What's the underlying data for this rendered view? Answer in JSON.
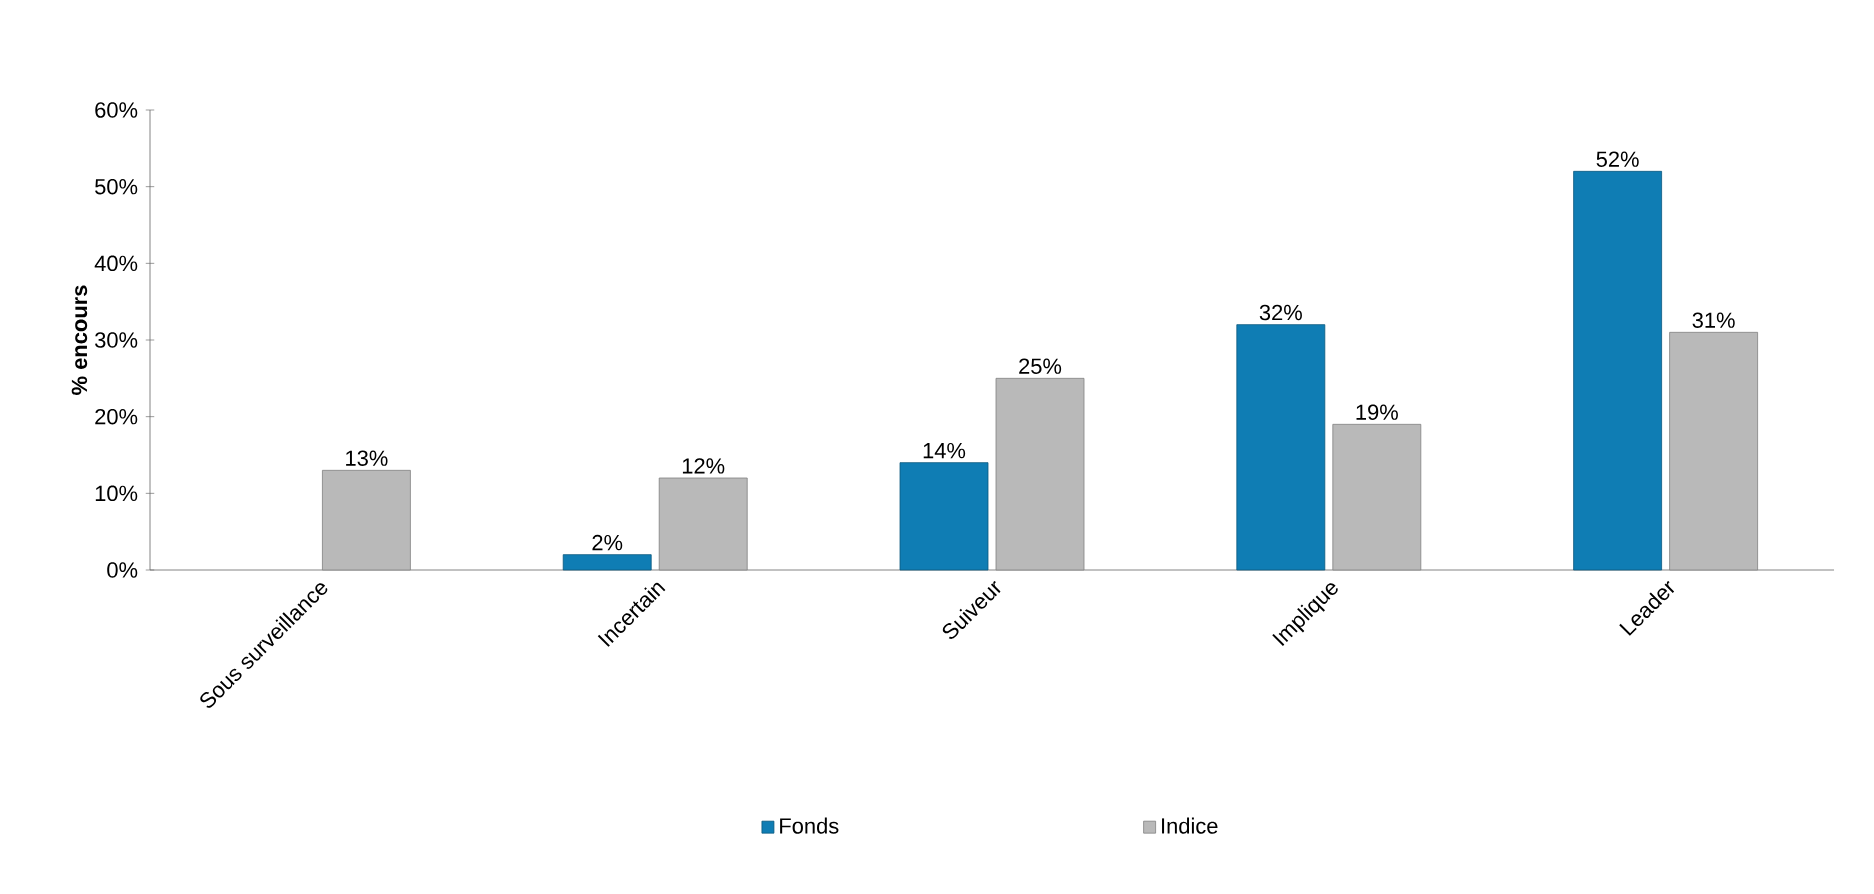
{
  "chart_data": {
    "type": "bar",
    "ylabel": "% encours",
    "categories": [
      "Sous surveillance",
      "Incertain",
      "Suiveur",
      "Implique",
      "Leader"
    ],
    "series": [
      {
        "name": "Fonds",
        "color": "#0f7db4",
        "values": [
          null,
          2,
          14,
          32,
          52
        ],
        "value_labels": [
          null,
          "2%",
          "14%",
          "32%",
          "52%"
        ]
      },
      {
        "name": "Indice",
        "color": "#b9b9b9",
        "values": [
          13,
          12,
          25,
          19,
          31
        ],
        "value_labels": [
          "13%",
          "12%",
          "25%",
          "19%",
          "31%"
        ]
      }
    ],
    "ylim": [
      0,
      60
    ],
    "yticks": [
      {
        "value": 0,
        "label": "0%"
      },
      {
        "value": 10,
        "label": "10%"
      },
      {
        "value": 20,
        "label": "20%"
      },
      {
        "value": 30,
        "label": "30%"
      },
      {
        "value": 40,
        "label": "40%"
      },
      {
        "value": 50,
        "label": "50%"
      },
      {
        "value": 60,
        "label": "60%"
      }
    ],
    "grid": false,
    "legend": "bottom"
  }
}
